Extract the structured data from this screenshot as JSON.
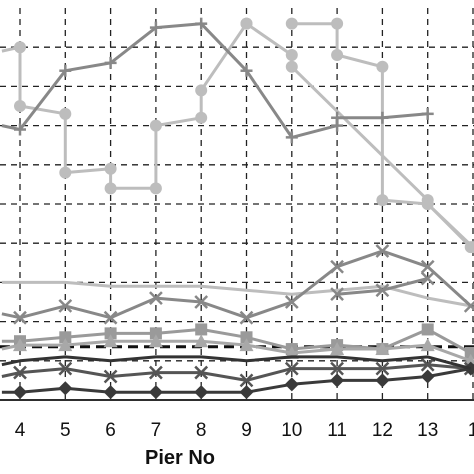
{
  "chart_data": {
    "type": "line",
    "title": "",
    "xlabel": "Pier No",
    "ylabel": "",
    "x": [
      3,
      4,
      5,
      6,
      7,
      8,
      9,
      10,
      11,
      12,
      13,
      14
    ],
    "x_tick_labels": [
      "4",
      "5",
      "6",
      "7",
      "8",
      "9",
      "10",
      "11",
      "12",
      "13",
      "1"
    ],
    "xlim": [
      3.6,
      13.95
    ],
    "ylim": [
      0,
      100
    ],
    "grid": true,
    "threshold_line": {
      "y": 13.6,
      "style": "dashed",
      "color": "#111111"
    },
    "series": [
      {
        "color": "#bdbdbd",
        "marker": "circle",
        "values": [
          89,
          90,
          75,
          73,
          58,
          59,
          54,
          54,
          70,
          72,
          79,
          96,
          96,
          88,
          85,
          51,
          50,
          39
        ],
        "x": [
          3.6,
          4.0,
          4.0,
          5.0,
          5.0,
          6.0,
          6.0,
          7.0,
          7.0,
          8.0,
          8.0,
          9.0,
          9.0,
          10.0,
          10.0,
          13.0,
          13.0,
          14.0
        ]
      },
      {
        "color": "#bdbdbd",
        "marker": "circle",
        "values": [
          96,
          96,
          88,
          85,
          51,
          50,
          39
        ],
        "x": [
          10,
          11,
          11,
          12,
          12,
          13,
          13.95
        ]
      },
      {
        "color": "#888888",
        "marker": "plus",
        "values": [
          70,
          69,
          84,
          86,
          95,
          96,
          84,
          67,
          70,
          72,
          72,
          73
        ],
        "x": [
          3.6,
          4,
          5,
          6,
          7,
          8,
          9,
          10,
          11,
          11,
          12,
          13
        ]
      },
      {
        "color": "#bdbdbd",
        "marker": "none",
        "values": [
          30,
          30,
          30,
          29,
          29,
          29,
          28,
          27,
          28,
          29,
          26,
          24
        ],
        "x": [
          3.6,
          4,
          5,
          6,
          7,
          8,
          9,
          10,
          11,
          12,
          13,
          13.95
        ]
      },
      {
        "color": "#888888",
        "marker": "x",
        "values": [
          22,
          21,
          24,
          21,
          26,
          25,
          21,
          25,
          34,
          38,
          34,
          24
        ],
        "x": [
          3.6,
          4,
          5,
          6,
          7,
          8,
          9,
          10,
          11,
          12,
          13,
          13.95
        ]
      },
      {
        "color": "#888888",
        "marker": "x",
        "values": [
          27,
          28,
          31
        ],
        "x": [
          11,
          12,
          13
        ]
      },
      {
        "color": "#9a9a9a",
        "marker": "square",
        "values": [
          15,
          15,
          16,
          17,
          17,
          18,
          16,
          13,
          14,
          13,
          18,
          12
        ],
        "x": [
          3.6,
          4,
          5,
          6,
          7,
          8,
          9,
          10,
          11,
          12,
          13,
          13.95
        ]
      },
      {
        "color": "#a8a8a8",
        "marker": "triangle",
        "values": [
          13,
          14,
          14,
          15,
          15,
          15,
          14,
          12,
          13,
          13,
          14,
          10
        ],
        "x": [
          3.6,
          4,
          5,
          6,
          7,
          8,
          9,
          10,
          11,
          12,
          13,
          13.95
        ]
      },
      {
        "color": "#555555",
        "marker": "x",
        "values": [
          6,
          7,
          8,
          6,
          7,
          7,
          5,
          8,
          8,
          8,
          9,
          8
        ],
        "x": [
          3.6,
          4,
          5,
          6,
          7,
          8,
          9,
          10,
          11,
          12,
          13,
          13.95
        ]
      },
      {
        "color": "#3a3a3a",
        "marker": "diamond",
        "values": [
          2,
          2,
          3,
          2,
          2,
          2,
          2,
          4,
          5,
          5,
          6,
          8
        ],
        "x": [
          3.6,
          4,
          5,
          6,
          7,
          8,
          9,
          10,
          11,
          12,
          13,
          13.95
        ]
      },
      {
        "color": "#333333",
        "marker": "none",
        "values": [
          9,
          10,
          11,
          10,
          11,
          11,
          10,
          11,
          11,
          10,
          11,
          8
        ],
        "x": [
          3.6,
          4,
          5,
          6,
          7,
          8,
          9,
          10,
          11,
          12,
          13,
          13.95
        ]
      }
    ]
  }
}
